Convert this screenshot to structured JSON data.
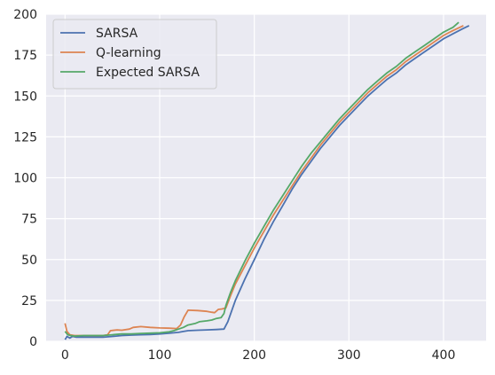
{
  "chart_data": {
    "type": "line",
    "title": "",
    "xlabel": "",
    "ylabel": "",
    "xlim": [
      -20,
      445
    ],
    "ylim": [
      0,
      200
    ],
    "x_ticks": [
      "0",
      "100",
      "200",
      "300",
      "400"
    ],
    "y_ticks": [
      "0",
      "25",
      "50",
      "75",
      "100",
      "125",
      "150",
      "175",
      "200"
    ],
    "grid": true,
    "legend_position": "top-left",
    "colors": {
      "plot_background": "#eaeaf2",
      "grid": "#ffffff"
    },
    "series": [
      {
        "name": "SARSA",
        "color": "#4c72b0",
        "points": [
          [
            0,
            1
          ],
          [
            2,
            3
          ],
          [
            5,
            2
          ],
          [
            8,
            3
          ],
          [
            12,
            2.5
          ],
          [
            20,
            2.5
          ],
          [
            30,
            2.5
          ],
          [
            40,
            2.5
          ],
          [
            50,
            3
          ],
          [
            60,
            3.5
          ],
          [
            70,
            3.8
          ],
          [
            80,
            4
          ],
          [
            90,
            4.2
          ],
          [
            100,
            4.5
          ],
          [
            110,
            5
          ],
          [
            120,
            5.5
          ],
          [
            125,
            6
          ],
          [
            130,
            6.5
          ],
          [
            140,
            6.8
          ],
          [
            150,
            7
          ],
          [
            160,
            7.2
          ],
          [
            168,
            7.5
          ],
          [
            172,
            12
          ],
          [
            180,
            25
          ],
          [
            190,
            38
          ],
          [
            200,
            50
          ],
          [
            210,
            62
          ],
          [
            220,
            73
          ],
          [
            230,
            83
          ],
          [
            240,
            93
          ],
          [
            250,
            102
          ],
          [
            260,
            110
          ],
          [
            270,
            118
          ],
          [
            280,
            125
          ],
          [
            290,
            132
          ],
          [
            300,
            138
          ],
          [
            310,
            144
          ],
          [
            320,
            150
          ],
          [
            330,
            155
          ],
          [
            340,
            160
          ],
          [
            350,
            164
          ],
          [
            360,
            169
          ],
          [
            370,
            173
          ],
          [
            380,
            177
          ],
          [
            390,
            181
          ],
          [
            400,
            185
          ],
          [
            410,
            188
          ],
          [
            420,
            191
          ],
          [
            427,
            193
          ]
        ]
      },
      {
        "name": "Q-learning",
        "color": "#dd8452",
        "points": [
          [
            0,
            11
          ],
          [
            2,
            6
          ],
          [
            5,
            4
          ],
          [
            10,
            3.5
          ],
          [
            20,
            3.5
          ],
          [
            30,
            3.5
          ],
          [
            40,
            3.5
          ],
          [
            45,
            4
          ],
          [
            48,
            6.5
          ],
          [
            55,
            7
          ],
          [
            60,
            6.8
          ],
          [
            68,
            7.5
          ],
          [
            72,
            8.5
          ],
          [
            80,
            9
          ],
          [
            90,
            8.5
          ],
          [
            100,
            8.2
          ],
          [
            110,
            8
          ],
          [
            118,
            7.8
          ],
          [
            122,
            10
          ],
          [
            126,
            15
          ],
          [
            130,
            19
          ],
          [
            140,
            18.8
          ],
          [
            150,
            18.3
          ],
          [
            155,
            17.8
          ],
          [
            158,
            17.5
          ],
          [
            162,
            19.5
          ],
          [
            166,
            19.8
          ],
          [
            170,
            20.5
          ],
          [
            175,
            28
          ],
          [
            180,
            35
          ],
          [
            190,
            46
          ],
          [
            200,
            57
          ],
          [
            210,
            67
          ],
          [
            220,
            77
          ],
          [
            230,
            86
          ],
          [
            240,
            95
          ],
          [
            250,
            104
          ],
          [
            260,
            112
          ],
          [
            270,
            120
          ],
          [
            280,
            127
          ],
          [
            290,
            134
          ],
          [
            300,
            140
          ],
          [
            310,
            146
          ],
          [
            320,
            152
          ],
          [
            330,
            157
          ],
          [
            340,
            162
          ],
          [
            350,
            166
          ],
          [
            360,
            171
          ],
          [
            370,
            175
          ],
          [
            380,
            179
          ],
          [
            390,
            183
          ],
          [
            400,
            187
          ],
          [
            410,
            190
          ],
          [
            421,
            193
          ]
        ]
      },
      {
        "name": "Expected SARSA",
        "color": "#55a868",
        "points": [
          [
            0,
            6
          ],
          [
            3,
            4
          ],
          [
            6,
            3.5
          ],
          [
            10,
            3.2
          ],
          [
            20,
            3.5
          ],
          [
            30,
            3.5
          ],
          [
            40,
            3.5
          ],
          [
            50,
            4
          ],
          [
            60,
            4.5
          ],
          [
            70,
            4.5
          ],
          [
            80,
            4.8
          ],
          [
            90,
            5
          ],
          [
            100,
            5.2
          ],
          [
            110,
            5.8
          ],
          [
            115,
            6.5
          ],
          [
            120,
            7.5
          ],
          [
            125,
            8.5
          ],
          [
            130,
            10
          ],
          [
            138,
            11
          ],
          [
            142,
            12
          ],
          [
            150,
            12.5
          ],
          [
            155,
            13
          ],
          [
            160,
            14
          ],
          [
            165,
            14.5
          ],
          [
            168,
            17
          ],
          [
            170,
            22
          ],
          [
            175,
            30
          ],
          [
            180,
            37
          ],
          [
            190,
            49
          ],
          [
            200,
            60
          ],
          [
            210,
            70
          ],
          [
            220,
            80
          ],
          [
            230,
            89
          ],
          [
            240,
            98
          ],
          [
            250,
            107
          ],
          [
            260,
            115
          ],
          [
            270,
            122
          ],
          [
            280,
            129
          ],
          [
            290,
            136
          ],
          [
            300,
            142
          ],
          [
            310,
            148
          ],
          [
            320,
            154
          ],
          [
            330,
            159
          ],
          [
            340,
            164
          ],
          [
            350,
            168
          ],
          [
            360,
            173
          ],
          [
            370,
            177
          ],
          [
            380,
            181
          ],
          [
            390,
            185
          ],
          [
            400,
            189
          ],
          [
            410,
            192
          ],
          [
            416,
            195
          ]
        ]
      }
    ]
  }
}
